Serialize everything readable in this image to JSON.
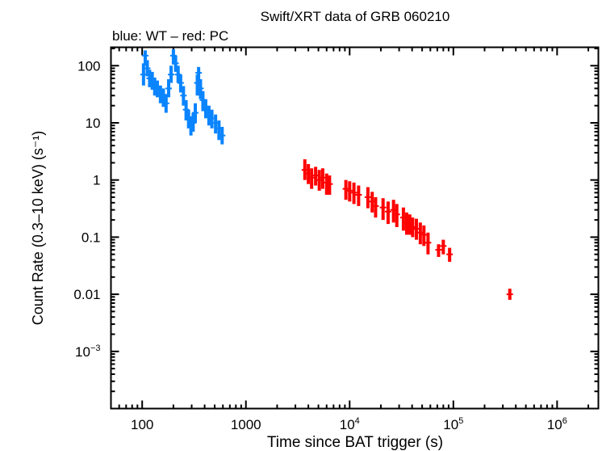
{
  "chart_data": {
    "type": "scatter",
    "title": "Swift/XRT data of GRB 060210",
    "subtitle": "blue: WT – red: PC",
    "xlabel": "Time since BAT trigger (s)",
    "ylabel": "Count Rate (0.3–10 keV) (s⁻¹)",
    "xscale": "log",
    "yscale": "log",
    "xlim": [
      50,
      2500000
    ],
    "ylim": [
      0.0001,
      210
    ],
    "grid": false,
    "x_ticks": [
      {
        "value": 100,
        "base": "100",
        "exp": ""
      },
      {
        "value": 1000,
        "base": "1000",
        "exp": ""
      },
      {
        "value": 10000,
        "base": "10",
        "exp": "4"
      },
      {
        "value": 100000,
        "base": "10",
        "exp": "5"
      },
      {
        "value": 1000000,
        "base": "10",
        "exp": "6"
      }
    ],
    "y_ticks": [
      {
        "value": 100,
        "base": "100",
        "exp": ""
      },
      {
        "value": 10,
        "base": "10",
        "exp": ""
      },
      {
        "value": 1,
        "base": "1",
        "exp": ""
      },
      {
        "value": 0.1,
        "base": "0.1",
        "exp": ""
      },
      {
        "value": 0.01,
        "base": "0.01",
        "exp": ""
      },
      {
        "value": 0.001,
        "base": "10",
        "exp": "−3"
      }
    ],
    "series": [
      {
        "mode": "WT",
        "color": "#0a84ff",
        "points": [
          [
            103,
            70,
            45,
            110
          ],
          [
            107,
            150,
            100,
            185
          ],
          [
            112,
            90,
            65,
            125
          ],
          [
            118,
            60,
            42,
            85
          ],
          [
            125,
            55,
            38,
            78
          ],
          [
            132,
            45,
            30,
            62
          ],
          [
            140,
            40,
            28,
            55
          ],
          [
            150,
            32,
            22,
            45
          ],
          [
            160,
            28,
            19,
            40
          ],
          [
            170,
            22,
            15,
            32
          ],
          [
            180,
            40,
            28,
            58
          ],
          [
            190,
            70,
            50,
            100
          ],
          [
            200,
            150,
            105,
            195
          ],
          [
            210,
            110,
            78,
            150
          ],
          [
            222,
            70,
            50,
            100
          ],
          [
            235,
            50,
            34,
            70
          ],
          [
            250,
            30,
            20,
            44
          ],
          [
            265,
            17,
            11,
            25
          ],
          [
            280,
            12,
            8,
            17
          ],
          [
            295,
            9,
            6,
            13
          ],
          [
            310,
            10,
            7,
            15
          ],
          [
            325,
            15,
            10,
            22
          ],
          [
            340,
            50,
            30,
            70
          ],
          [
            350,
            75,
            50,
            95
          ],
          [
            365,
            40,
            26,
            58
          ],
          [
            385,
            25,
            16,
            36
          ],
          [
            410,
            18,
            12,
            26
          ],
          [
            440,
            14,
            9,
            20
          ],
          [
            470,
            12,
            8,
            17
          ],
          [
            510,
            10,
            6.5,
            14
          ],
          [
            550,
            8,
            5,
            11
          ],
          [
            590,
            6,
            4.2,
            8.5
          ]
        ]
      },
      {
        "mode": "PC",
        "color": "#ff0000",
        "points": [
          [
            3700,
            1.5,
            1.0,
            2.3
          ],
          [
            4000,
            1.3,
            0.85,
            1.9
          ],
          [
            4300,
            1.1,
            0.7,
            1.6
          ],
          [
            4700,
            1.2,
            0.8,
            1.7
          ],
          [
            5100,
            1.0,
            0.65,
            1.5
          ],
          [
            5500,
            1.1,
            0.7,
            1.6
          ],
          [
            6000,
            0.9,
            0.55,
            1.3
          ],
          [
            6400,
            0.85,
            0.55,
            1.2
          ],
          [
            9200,
            0.7,
            0.45,
            1.0
          ],
          [
            10000,
            0.65,
            0.42,
            0.95
          ],
          [
            11000,
            0.6,
            0.38,
            0.9
          ],
          [
            12200,
            0.55,
            0.35,
            0.8
          ],
          [
            15000,
            0.5,
            0.32,
            0.75
          ],
          [
            16500,
            0.42,
            0.27,
            0.62
          ],
          [
            17800,
            0.35,
            0.22,
            0.5
          ],
          [
            21000,
            0.33,
            0.2,
            0.48
          ],
          [
            23500,
            0.28,
            0.17,
            0.42
          ],
          [
            26500,
            0.3,
            0.18,
            0.45
          ],
          [
            28500,
            0.25,
            0.15,
            0.38
          ],
          [
            33000,
            0.22,
            0.13,
            0.33
          ],
          [
            35500,
            0.18,
            0.11,
            0.27
          ],
          [
            38000,
            0.17,
            0.11,
            0.25
          ],
          [
            40500,
            0.15,
            0.1,
            0.22
          ],
          [
            44000,
            0.14,
            0.09,
            0.21
          ],
          [
            48000,
            0.12,
            0.075,
            0.18
          ],
          [
            52000,
            0.11,
            0.07,
            0.16
          ],
          [
            57000,
            0.08,
            0.05,
            0.12
          ],
          [
            72000,
            0.06,
            0.045,
            0.075
          ],
          [
            80000,
            0.07,
            0.05,
            0.09
          ],
          [
            92000,
            0.05,
            0.037,
            0.065
          ],
          [
            350000,
            0.01,
            0.008,
            0.0125
          ]
        ]
      }
    ]
  }
}
